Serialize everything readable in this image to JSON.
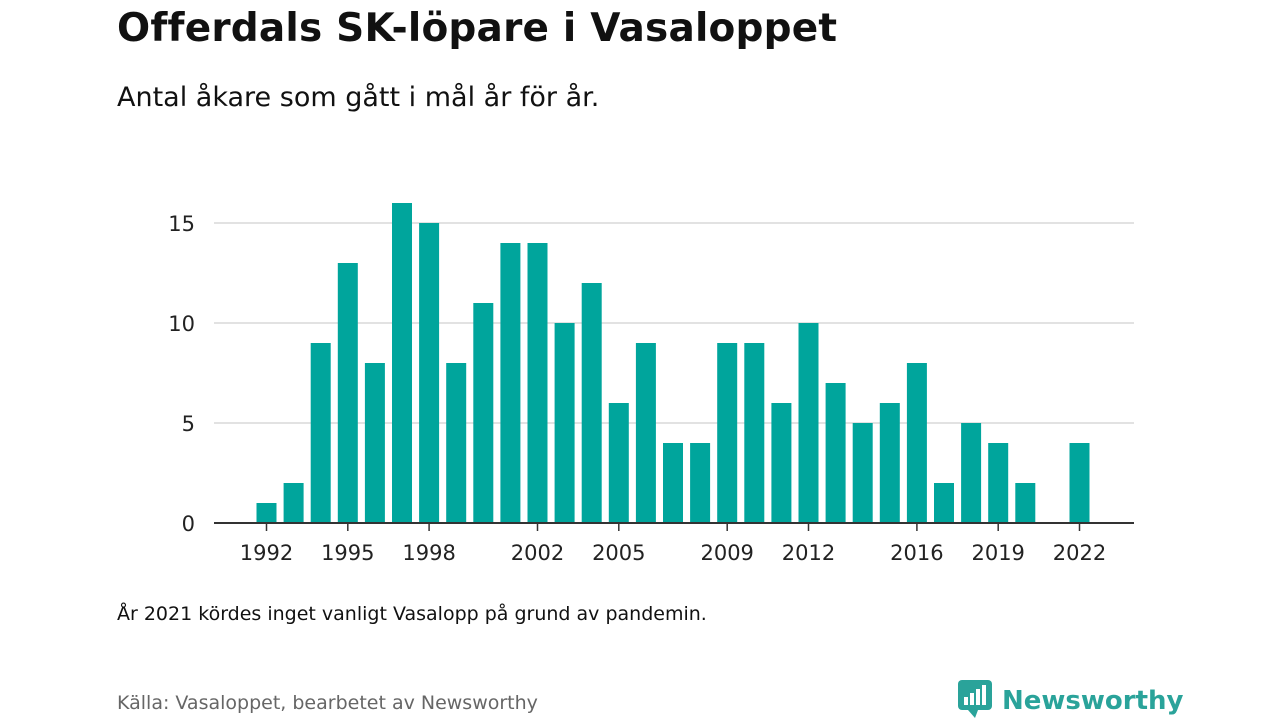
{
  "title": "Offerdals SK-löpare i Vasaloppet",
  "subtitle": "Antal åkare som gått i mål år för år.",
  "note": "År 2021 kördes inget vanligt Vasalopp på grund av pandemin.",
  "source": "Källa: Vasaloppet, bearbetet av Newsworthy",
  "brand": {
    "name": "Newsworthy",
    "icon": "newsworthy-logo-icon",
    "color": "#2aa39a"
  },
  "colors": {
    "bar": "#00a59c",
    "grid": "#d9d9d9",
    "axis": "#333333"
  },
  "chart_data": {
    "type": "bar",
    "x": [
      1992,
      1993,
      1994,
      1995,
      1996,
      1997,
      1998,
      1999,
      2000,
      2001,
      2002,
      2003,
      2004,
      2005,
      2006,
      2007,
      2008,
      2009,
      2010,
      2011,
      2012,
      2013,
      2014,
      2015,
      2016,
      2017,
      2018,
      2019,
      2020,
      2021,
      2022
    ],
    "values": [
      1,
      2,
      9,
      13,
      8,
      16,
      15,
      8,
      11,
      14,
      14,
      10,
      12,
      6,
      9,
      4,
      4,
      9,
      9,
      6,
      10,
      7,
      5,
      6,
      8,
      2,
      5,
      4,
      2,
      0,
      4
    ],
    "x_ticks": [
      "1992",
      "1995",
      "1998",
      "2002",
      "2005",
      "2009",
      "2012",
      "2016",
      "2019",
      "2022"
    ],
    "y_ticks": [
      "0",
      "5",
      "10",
      "15"
    ],
    "ylim": [
      0,
      16
    ],
    "xlabel": "",
    "ylabel": "",
    "grid": true,
    "legend": "none"
  }
}
